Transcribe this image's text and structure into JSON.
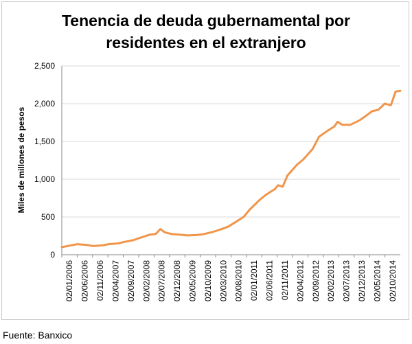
{
  "title_line1": "Tenencia de deuda gubernamental por",
  "title_line2": "residentes en el extranjero",
  "source": "Fuente: Banxico",
  "colors": {
    "line": "#F0954A",
    "grid": "#d9d9d9",
    "axis": "#888888"
  },
  "chart_data": {
    "type": "line",
    "title": "Tenencia de deuda gubernamental por residentes en el extranjero",
    "xlabel": "",
    "ylabel": "Miles  de millones de pesos",
    "ylim": [
      0,
      2500
    ],
    "yticks": [
      0,
      500,
      1000,
      1500,
      2000,
      2500
    ],
    "ytick_labels": [
      "0",
      "500",
      "1,000",
      "1,500",
      "2,000",
      "2,500"
    ],
    "grid": "horizontal",
    "legend": "none",
    "x_tick_labels": [
      "02/01/2006",
      "02/06/2006",
      "02/11/2006",
      "02/04/2007",
      "02/09/2007",
      "02/02/2008",
      "02/07/2008",
      "02/12/2008",
      "02/05/2009",
      "02/10/2009",
      "02/03/2010",
      "02/08/2010",
      "02/01/2011",
      "02/06/2011",
      "02/11/2011",
      "02/04/2012",
      "02/09/2012",
      "02/02/2013",
      "02/07/2013",
      "02/12/2013",
      "02/05/2014",
      "02/10/2014"
    ],
    "series": [
      {
        "x": [
          "2006-01-02",
          "2006-04-01",
          "2006-06-01",
          "2006-09-01",
          "2006-11-01",
          "2007-02-01",
          "2007-04-01",
          "2007-07-01",
          "2007-09-01",
          "2007-12-01",
          "2008-02-01",
          "2008-05-01",
          "2008-07-01",
          "2008-08-15",
          "2008-10-01",
          "2008-12-01",
          "2009-03-01",
          "2009-05-01",
          "2009-08-01",
          "2009-10-01",
          "2010-01-01",
          "2010-03-01",
          "2010-06-01",
          "2010-08-01",
          "2010-11-01",
          "2011-01-01",
          "2011-04-01",
          "2011-06-01",
          "2011-09-01",
          "2011-10-01",
          "2011-11-15",
          "2012-01-01",
          "2012-04-01",
          "2012-06-01",
          "2012-09-01",
          "2012-11-01",
          "2013-01-01",
          "2013-04-01",
          "2013-05-01",
          "2013-06-15",
          "2013-09-01",
          "2013-12-01",
          "2014-02-01",
          "2014-04-01",
          "2014-06-01",
          "2014-08-01",
          "2014-10-01",
          "2014-11-15",
          "2014-12-31"
        ],
        "values": [
          100,
          125,
          140,
          130,
          115,
          125,
          140,
          150,
          170,
          195,
          225,
          265,
          275,
          340,
          295,
          275,
          265,
          255,
          260,
          270,
          300,
          325,
          370,
          420,
          500,
          600,
          720,
          790,
          870,
          920,
          900,
          1050,
          1190,
          1260,
          1400,
          1560,
          1620,
          1700,
          1760,
          1720,
          1720,
          1780,
          1840,
          1900,
          1920,
          2000,
          1980,
          2160,
          2170
        ]
      }
    ]
  }
}
